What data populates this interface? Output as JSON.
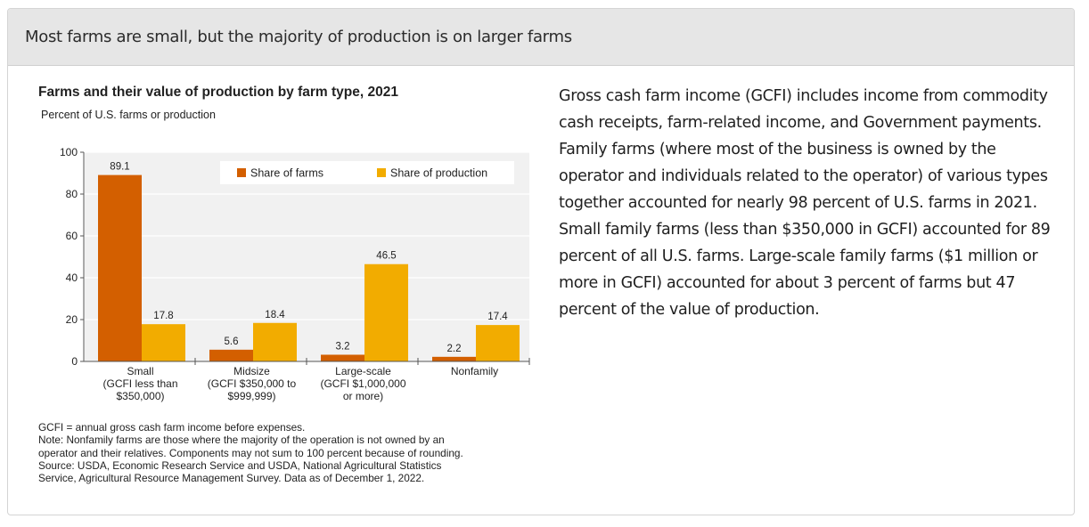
{
  "card": {
    "title": "Most farms are small, but the majority of production is on larger farms"
  },
  "figure": {
    "notes": [
      "GCFI = annual gross cash farm income before expenses.",
      "Note: Nonfamily farms are those where the majority of the operation is not owned by an",
      "operator and their relatives. Components may not sum to 100 percent because of rounding.",
      "Source: USDA, Economic Research Service and USDA, National Agricultural Statistics",
      "Service, Agricultural Resource Management Survey. Data as of December 1, 2022."
    ]
  },
  "body_text": "Gross cash farm income (GCFI) includes income from commodity cash receipts, farm-related income, and Government payments. Family farms (where most of the business is owned by the operator and individuals related to the operator) of various types together accounted for nearly 98 percent of U.S. farms in 2021. Small family farms (less than $350,000 in GCFI) accounted for 89 percent of all U.S. farms. Large-scale family farms ($1 million or more in GCFI) accounted for about 3 percent of farms but 47 percent of the value of production.",
  "chart_data": {
    "type": "bar",
    "title": "Farms and their value of production by farm type, 2021",
    "ylabel": "Percent of U.S. farms or production",
    "xlabel": "",
    "ylim": [
      0,
      100
    ],
    "yticks": [
      0,
      20,
      40,
      60,
      80,
      100
    ],
    "grid": true,
    "legend_position": "top-right",
    "categories": [
      [
        "Small",
        "(GCFI less than",
        "$350,000)"
      ],
      [
        "Midsize",
        "(GCFI $350,000 to",
        "$999,999)"
      ],
      [
        "Large-scale",
        "(GCFI $1,000,000",
        "or more)"
      ],
      [
        "Nonfamily"
      ]
    ],
    "series": [
      {
        "name": "Share of farms",
        "color": "#d35f00",
        "values": [
          89.1,
          5.6,
          3.2,
          2.2
        ],
        "labels": [
          "89.1",
          "5.6",
          "3.2",
          "2.2"
        ]
      },
      {
        "name": "Share of production",
        "color": "#f2ac00",
        "values": [
          17.8,
          18.4,
          46.5,
          17.4
        ],
        "labels": [
          "17.8",
          "18.4",
          "46.5",
          "17.4"
        ]
      }
    ]
  }
}
